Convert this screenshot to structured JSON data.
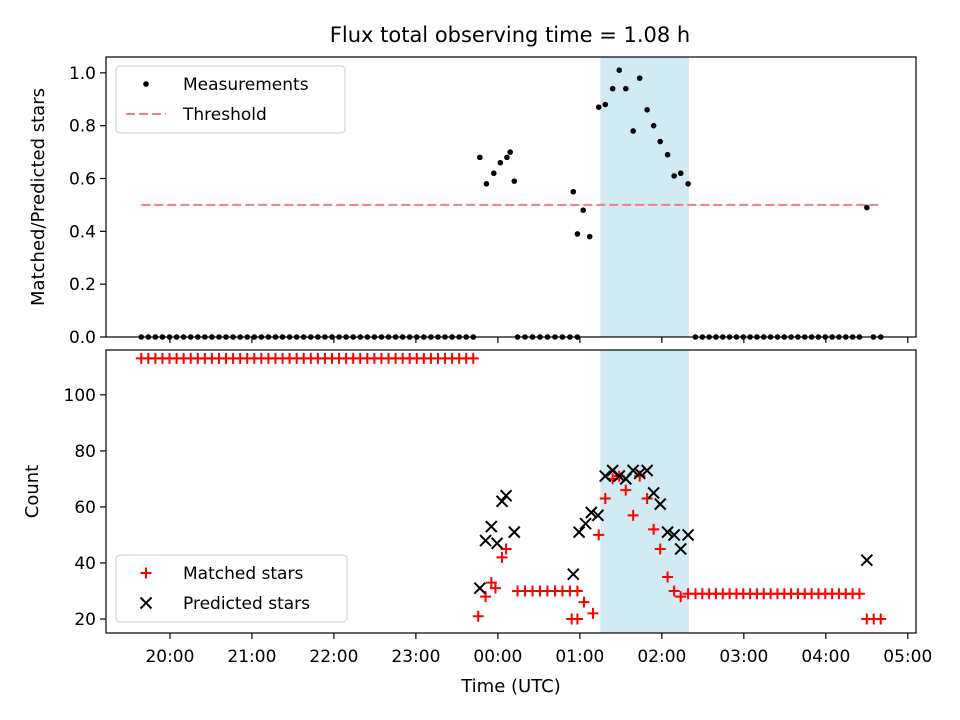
{
  "chart_data": {
    "title": "Flux total observing time = 1.08 h",
    "xlabel": "Time (UTC)",
    "x_unit": "hours since 00:00 UTC",
    "x_ticks": [
      {
        "value": -4,
        "label": "20:00"
      },
      {
        "value": -3,
        "label": "21:00"
      },
      {
        "value": -2,
        "label": "22:00"
      },
      {
        "value": -1,
        "label": "23:00"
      },
      {
        "value": 0,
        "label": "00:00"
      },
      {
        "value": 1,
        "label": "01:00"
      },
      {
        "value": 2,
        "label": "02:00"
      },
      {
        "value": 3,
        "label": "03:00"
      },
      {
        "value": 4,
        "label": "04:00"
      },
      {
        "value": 5,
        "label": "05:00"
      }
    ],
    "xlim": [
      -4.78,
      5.1
    ],
    "highlight_span": {
      "x0": 1.25,
      "x1": 2.33,
      "color": "#add8e6",
      "alpha": 0.55
    },
    "panels": [
      {
        "type": "scatter",
        "ylabel": "Matched/Predicted stars",
        "ylim": [
          0,
          1.06
        ],
        "yticks": [
          0.0,
          0.2,
          0.4,
          0.6,
          0.8,
          1.0
        ],
        "ytick_labels": [
          "0.0",
          "0.2",
          "0.4",
          "0.6",
          "0.8",
          "1.0"
        ],
        "legend": {
          "position": "upper left",
          "entries": [
            {
              "label": "Measurements",
              "marker": "dot",
              "color": "#000000"
            },
            {
              "label": "Threshold",
              "style": "dashed",
              "color": "#f08080"
            }
          ]
        },
        "threshold": {
          "y": 0.5,
          "x0": -4.35,
          "x1": 4.67,
          "color": "#f08080"
        },
        "measurements_zero": {
          "y": 0,
          "ranges": [
            {
              "x0": -4.35,
              "x1": -0.3,
              "n": 48
            },
            {
              "x0": 0.24,
              "x1": 0.97,
              "n": 9
            },
            {
              "x0": 2.41,
              "x1": 4.41,
              "n": 25
            },
            {
              "x0": 4.58,
              "x1": 4.67,
              "n": 2
            }
          ]
        },
        "measurements": [
          [
            -0.22,
            0.68
          ],
          [
            -0.14,
            0.58
          ],
          [
            -0.05,
            0.62
          ],
          [
            0.03,
            0.66
          ],
          [
            0.11,
            0.68
          ],
          [
            0.15,
            0.7
          ],
          [
            0.2,
            0.59
          ],
          [
            0.92,
            0.55
          ],
          [
            0.97,
            0.39
          ],
          [
            1.04,
            0.48
          ],
          [
            1.12,
            0.38
          ],
          [
            1.23,
            0.87
          ],
          [
            1.31,
            0.88
          ],
          [
            1.4,
            0.94
          ],
          [
            1.48,
            1.01
          ],
          [
            1.56,
            0.94
          ],
          [
            1.65,
            0.78
          ],
          [
            1.73,
            0.98
          ],
          [
            1.82,
            0.86
          ],
          [
            1.9,
            0.8
          ],
          [
            1.98,
            0.74
          ],
          [
            2.07,
            0.69
          ],
          [
            2.15,
            0.61
          ],
          [
            2.23,
            0.62
          ],
          [
            2.32,
            0.58
          ],
          [
            4.5,
            0.49
          ]
        ]
      },
      {
        "type": "scatter",
        "ylabel": "Count",
        "ylim": [
          15,
          116
        ],
        "yticks": [
          20,
          40,
          60,
          80,
          100
        ],
        "ytick_labels": [
          "20",
          "40",
          "60",
          "80",
          "100"
        ],
        "legend": {
          "position": "lower left",
          "entries": [
            {
              "label": "Matched stars",
              "marker": "plus",
              "color": "#ff0000"
            },
            {
              "label": "Predicted stars",
              "marker": "x",
              "color": "#000000"
            }
          ]
        },
        "matched_constant": [
          {
            "x0": -4.35,
            "x1": -0.3,
            "n": 48,
            "y": 113
          },
          {
            "x0": 0.24,
            "x1": 0.97,
            "n": 9,
            "y": 30
          },
          {
            "x0": 2.41,
            "x1": 4.41,
            "n": 25,
            "y": 29
          },
          {
            "x0": 4.5,
            "x1": 4.67,
            "n": 3,
            "y": 20
          }
        ],
        "matched": [
          [
            -0.24,
            21
          ],
          [
            -0.15,
            28
          ],
          [
            -0.08,
            33
          ],
          [
            -0.03,
            31
          ],
          [
            0.05,
            42
          ],
          [
            0.1,
            45
          ],
          [
            0.9,
            20
          ],
          [
            0.97,
            20
          ],
          [
            1.05,
            26
          ],
          [
            1.16,
            22
          ],
          [
            1.23,
            50
          ],
          [
            1.31,
            63
          ],
          [
            1.4,
            70
          ],
          [
            1.48,
            71
          ],
          [
            1.56,
            66
          ],
          [
            1.65,
            57
          ],
          [
            1.73,
            71
          ],
          [
            1.82,
            63
          ],
          [
            1.9,
            52
          ],
          [
            1.98,
            45
          ],
          [
            2.07,
            35
          ],
          [
            2.15,
            30
          ],
          [
            2.23,
            28
          ],
          [
            2.32,
            29
          ]
        ],
        "predicted": [
          [
            -0.22,
            31
          ],
          [
            -0.15,
            48
          ],
          [
            -0.08,
            53
          ],
          [
            -0.01,
            47
          ],
          [
            0.05,
            62
          ],
          [
            0.1,
            64
          ],
          [
            0.2,
            51
          ],
          [
            0.92,
            36
          ],
          [
            0.99,
            51
          ],
          [
            1.07,
            54
          ],
          [
            1.14,
            58
          ],
          [
            1.22,
            57
          ],
          [
            1.31,
            71
          ],
          [
            1.4,
            73
          ],
          [
            1.48,
            71
          ],
          [
            1.56,
            70
          ],
          [
            1.65,
            73
          ],
          [
            1.73,
            72
          ],
          [
            1.82,
            73
          ],
          [
            1.9,
            65
          ],
          [
            1.98,
            61
          ],
          [
            2.07,
            51
          ],
          [
            2.15,
            50
          ],
          [
            2.23,
            45
          ],
          [
            2.32,
            50
          ],
          [
            4.5,
            41
          ]
        ]
      }
    ]
  }
}
